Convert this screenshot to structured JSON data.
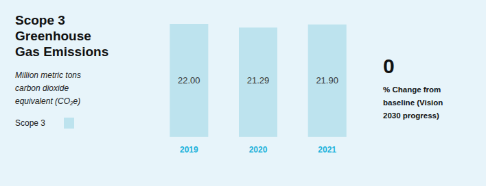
{
  "chart_data": {
    "type": "bar",
    "title": "Scope 3 Greenhouse Gas Emissions",
    "subtitle": "Million metric tons carbon dioxide equivalent (CO₂e)",
    "categories": [
      "2019",
      "2020",
      "2021"
    ],
    "series": [
      {
        "name": "Scope 3",
        "color": "#bde3ee",
        "values": [
          22,
          21.29,
          21.9
        ],
        "value_labels": [
          "22.00",
          "21.29",
          "21.90"
        ]
      }
    ],
    "ylim": [
      0,
      22
    ],
    "tick_labels": "x",
    "grid": false,
    "data_labels": true,
    "annotation": {
      "value": 0,
      "text": "% Change from baseline (Vision 2030 progress)"
    }
  }
}
